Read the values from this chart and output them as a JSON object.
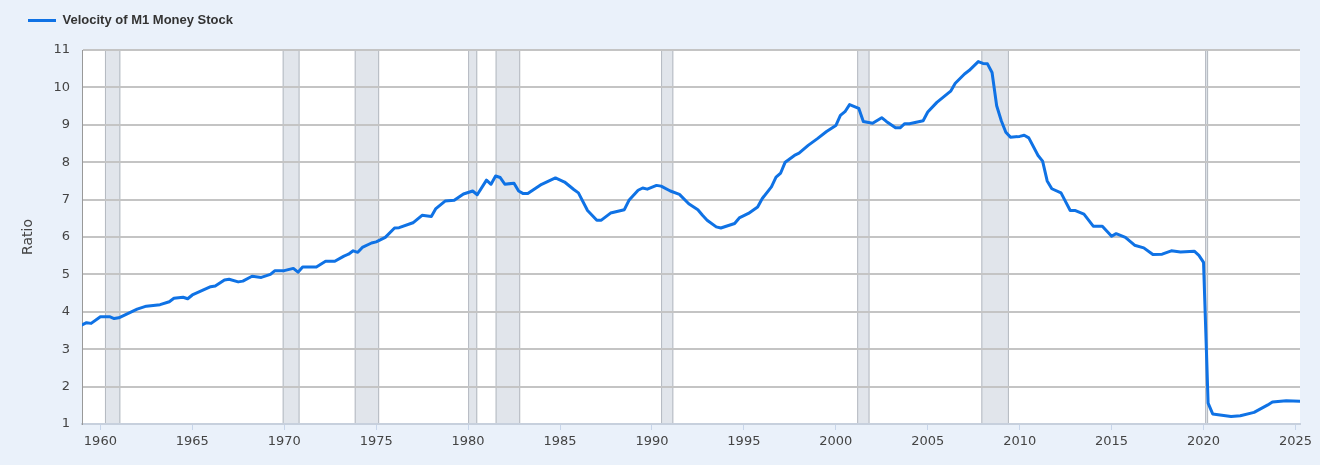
{
  "chart_data": {
    "type": "line",
    "ylabel": "Ratio",
    "x": [
      "1959-01",
      "1959-04",
      "1959-07",
      "1960-01",
      "1960-07",
      "1960-10",
      "1961-01",
      "1962-01",
      "1962-07",
      "1963-04",
      "1963-10",
      "1964-01",
      "1964-07",
      "1964-10",
      "1965-01",
      "1966-01",
      "1966-04",
      "1966-10",
      "1967-01",
      "1967-07",
      "1967-10",
      "1968-04",
      "1968-10",
      "1969-04",
      "1969-07",
      "1970-01",
      "1970-07",
      "1970-10",
      "1971-01",
      "1971-10",
      "1972-04",
      "1972-10",
      "1973-04",
      "1973-07",
      "1973-10",
      "1974-01",
      "1974-04",
      "1974-10",
      "1975-01",
      "1975-07",
      "1976-01",
      "1976-04",
      "1977-01",
      "1977-07",
      "1978-01",
      "1978-04",
      "1978-10",
      "1979-04",
      "1979-10",
      "1980-04",
      "1980-07",
      "1981-01",
      "1981-04",
      "1981-07",
      "1981-10",
      "1982-01",
      "1982-07",
      "1982-10",
      "1983-01",
      "1983-04",
      "1984-01",
      "1984-10",
      "1985-04",
      "1985-10",
      "1986-01",
      "1986-07",
      "1987-01",
      "1987-04",
      "1987-10",
      "1988-07",
      "1988-10",
      "1989-04",
      "1989-07",
      "1989-10",
      "1990-04",
      "1990-07",
      "1991-01",
      "1991-07",
      "1992-01",
      "1992-07",
      "1992-10",
      "1993-01",
      "1993-07",
      "1993-10",
      "1994-07",
      "1994-10",
      "1995-04",
      "1995-10",
      "1996-01",
      "1996-07",
      "1996-10",
      "1997-01",
      "1997-04",
      "1997-10",
      "1998-01",
      "1998-07",
      "1999-01",
      "1999-07",
      "2000-01",
      "2000-04",
      "2000-07",
      "2000-10",
      "2001-04",
      "2001-07",
      "2002-01",
      "2002-07",
      "2002-10",
      "2003-04",
      "2003-07",
      "2003-10",
      "2004-01",
      "2004-10",
      "2005-01",
      "2005-07",
      "2006-04",
      "2006-07",
      "2007-01",
      "2007-04",
      "2007-10",
      "2008-01",
      "2008-04",
      "2008-07",
      "2008-10",
      "2009-01",
      "2009-04",
      "2009-07",
      "2010-01",
      "2010-04",
      "2010-07",
      "2011-01",
      "2011-04",
      "2011-07",
      "2011-10",
      "2012-04",
      "2012-10",
      "2013-01",
      "2013-07",
      "2014-01",
      "2014-07",
      "2015-01",
      "2015-04",
      "2015-10",
      "2016-04",
      "2016-10",
      "2017-04",
      "2017-10",
      "2018-04",
      "2018-10",
      "2019-07",
      "2019-10",
      "2020-01",
      "2020-04",
      "2020-07",
      "2021-07",
      "2022-01",
      "2022-10",
      "2023-07",
      "2023-10",
      "2024-07",
      "2025-04"
    ],
    "series": [
      {
        "name": "Velocity of M1 Money Stock",
        "color": "#0f72e5",
        "values": [
          3.65,
          3.71,
          3.69,
          3.87,
          3.87,
          3.82,
          3.84,
          4.07,
          4.15,
          4.19,
          4.27,
          4.36,
          4.39,
          4.35,
          4.45,
          4.67,
          4.69,
          4.85,
          4.87,
          4.8,
          4.82,
          4.95,
          4.92,
          5.0,
          5.1,
          5.1,
          5.16,
          5.06,
          5.2,
          5.2,
          5.35,
          5.35,
          5.49,
          5.54,
          5.63,
          5.59,
          5.72,
          5.84,
          5.87,
          5.99,
          6.24,
          6.25,
          6.38,
          6.58,
          6.55,
          6.76,
          6.96,
          6.98,
          7.15,
          7.23,
          7.13,
          7.52,
          7.41,
          7.63,
          7.59,
          7.41,
          7.44,
          7.23,
          7.16,
          7.16,
          7.41,
          7.58,
          7.47,
          7.27,
          7.18,
          6.71,
          6.45,
          6.45,
          6.64,
          6.73,
          6.98,
          7.25,
          7.31,
          7.28,
          7.38,
          7.36,
          7.23,
          7.14,
          6.89,
          6.73,
          6.58,
          6.45,
          6.27,
          6.24,
          6.36,
          6.51,
          6.63,
          6.8,
          7.03,
          7.34,
          7.6,
          7.71,
          8.0,
          8.18,
          8.24,
          8.45,
          8.63,
          8.82,
          8.98,
          9.25,
          9.35,
          9.54,
          9.44,
          9.09,
          9.04,
          9.19,
          9.09,
          8.92,
          8.92,
          9.03,
          9.03,
          9.11,
          9.34,
          9.6,
          9.9,
          10.11,
          10.36,
          10.45,
          10.69,
          10.64,
          10.63,
          10.4,
          9.51,
          9.11,
          8.8,
          8.67,
          8.69,
          8.72,
          8.65,
          8.18,
          8.03,
          7.5,
          7.29,
          7.18,
          6.71,
          6.71,
          6.61,
          6.29,
          6.29,
          6.02,
          6.09,
          5.99,
          5.78,
          5.71,
          5.53,
          5.54,
          5.63,
          5.6,
          5.62,
          5.51,
          5.32,
          1.56,
          1.27,
          1.2,
          1.22,
          1.31,
          1.51,
          1.59,
          1.62,
          1.61
        ]
      }
    ],
    "xlim": [
      "1959-01-01",
      "2025-04-01"
    ],
    "xticks": [
      "1960",
      "1965",
      "1970",
      "1975",
      "1980",
      "1985",
      "1990",
      "1995",
      "2000",
      "2005",
      "2010",
      "2015",
      "2020",
      "2025"
    ],
    "ylim": [
      1,
      11
    ],
    "yticks": [
      1,
      2,
      3,
      4,
      5,
      6,
      7,
      8,
      9,
      10,
      11
    ],
    "bands": [
      {
        "axis": "x",
        "from": "1960-04",
        "to": "1961-02",
        "color": "#e1e5eb"
      },
      {
        "axis": "x",
        "from": "1969-12",
        "to": "1970-11",
        "color": "#e1e5eb"
      },
      {
        "axis": "x",
        "from": "1973-11",
        "to": "1975-03",
        "color": "#e1e5eb"
      },
      {
        "axis": "x",
        "from": "1980-01",
        "to": "1980-07",
        "color": "#e1e5eb"
      },
      {
        "axis": "x",
        "from": "1981-07",
        "to": "1982-11",
        "color": "#e1e5eb"
      },
      {
        "axis": "x",
        "from": "1990-07",
        "to": "1991-03",
        "color": "#e1e5eb"
      },
      {
        "axis": "x",
        "from": "2001-03",
        "to": "2001-11",
        "color": "#e1e5eb"
      },
      {
        "axis": "x",
        "from": "2007-12",
        "to": "2009-06",
        "color": "#e1e5eb"
      },
      {
        "axis": "x",
        "from": "2020-02",
        "to": "2020-04",
        "color": "#e1e5eb"
      }
    ],
    "grid": "y",
    "legend": "top left"
  }
}
